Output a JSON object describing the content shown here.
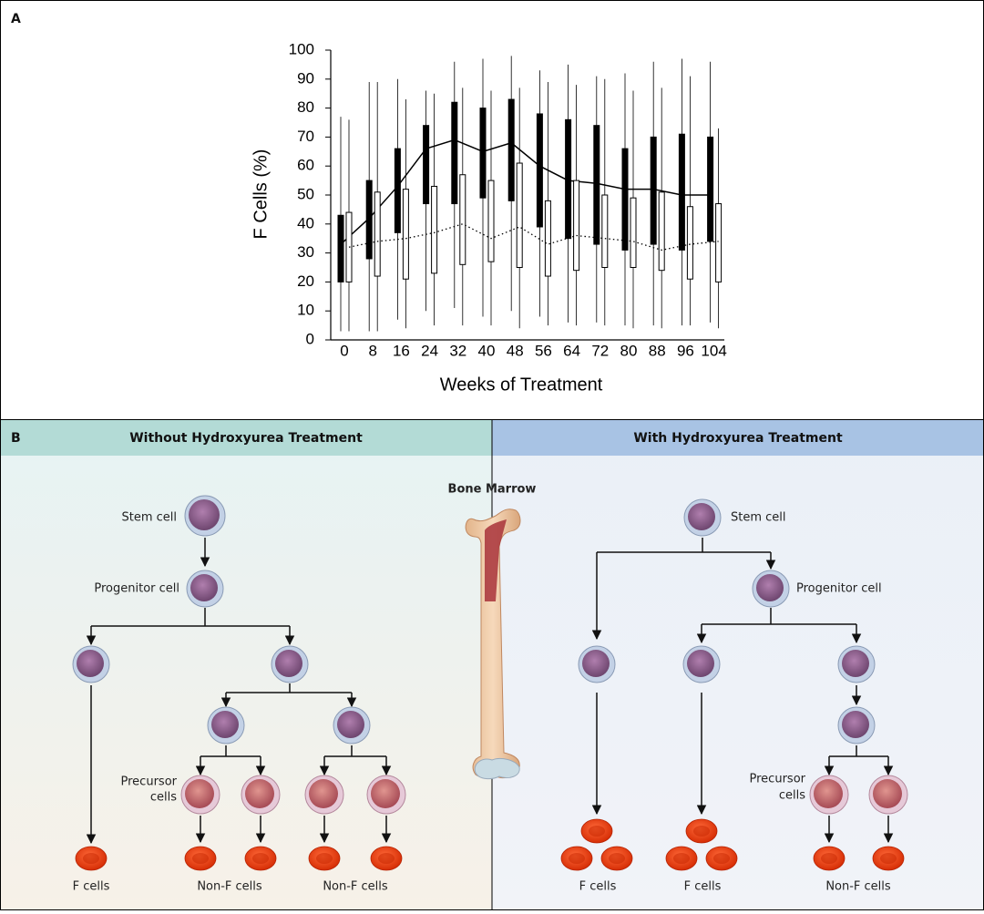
{
  "chart_data": {
    "type": "box",
    "panel_label": "A",
    "y_label": "F Cells (%)",
    "x_label": "Weeks of Treatment",
    "categories": [
      "0",
      "8",
      "16",
      "24",
      "32",
      "40",
      "48",
      "56",
      "64",
      "72",
      "80",
      "88",
      "96",
      "104"
    ],
    "ylim": [
      0,
      100
    ],
    "yticks": [
      0,
      10,
      20,
      30,
      40,
      50,
      60,
      70,
      80,
      90,
      100
    ],
    "series": [
      {
        "color": "#000000",
        "median_line": "solid",
        "low": [
          3,
          3,
          7,
          10,
          11,
          8,
          10,
          8,
          6,
          6,
          5,
          5,
          5,
          6
        ],
        "q1": [
          20,
          28,
          37,
          47,
          47,
          49,
          48,
          39,
          35,
          33,
          31,
          33,
          31,
          34
        ],
        "median": [
          33,
          42,
          53,
          66,
          69,
          65,
          68,
          60,
          55,
          54,
          52,
          52,
          50,
          50
        ],
        "q3": [
          43,
          55,
          66,
          74,
          82,
          80,
          83,
          78,
          76,
          74,
          66,
          70,
          71,
          70
        ],
        "high": [
          77,
          89,
          90,
          86,
          96,
          97,
          98,
          93,
          95,
          91,
          92,
          96,
          97,
          96
        ]
      },
      {
        "color": "#ffffff",
        "median_line": "dotted",
        "low": [
          3,
          3,
          4,
          5,
          5,
          5,
          4,
          5,
          5,
          5,
          4,
          4,
          5,
          4
        ],
        "q1": [
          20,
          22,
          21,
          23,
          26,
          27,
          25,
          22,
          24,
          25,
          25,
          24,
          21,
          20
        ],
        "median": [
          32,
          34,
          35,
          37,
          40,
          35,
          39,
          33,
          36,
          35,
          34,
          31,
          33,
          34
        ],
        "q3": [
          44,
          51,
          52,
          53,
          57,
          55,
          61,
          48,
          55,
          50,
          49,
          51,
          46,
          47
        ],
        "high": [
          76,
          89,
          83,
          85,
          87,
          86,
          87,
          89,
          88,
          90,
          86,
          87,
          91,
          73
        ]
      }
    ]
  },
  "panel_b": {
    "label": "B",
    "center": "Bone Marrow",
    "left": {
      "title": "Without Hydroxyurea Treatment",
      "stem": "Stem cell",
      "progenitor": "Progenitor cell",
      "precursor": [
        "Precursor",
        "cells"
      ],
      "outputs": [
        "F cells",
        "Non-F cells",
        "Non-F cells"
      ]
    },
    "right": {
      "title": "With Hydroxyurea Treatment",
      "stem": "Stem cell",
      "progenitor": "Progenitor cell",
      "precursor": [
        "Precursor",
        "cells"
      ],
      "outputs": [
        "F cells",
        "F cells",
        "Non-F cells"
      ]
    }
  }
}
